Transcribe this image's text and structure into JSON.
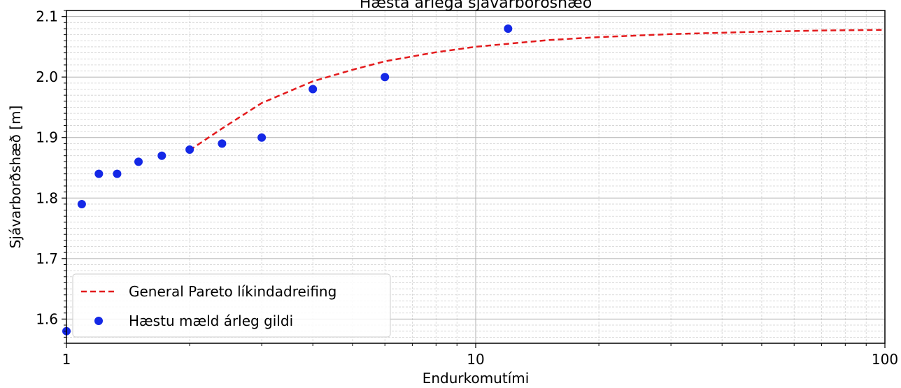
{
  "chart_data": {
    "type": "scatter",
    "title": "Hæsta árlega sjávarborðshæð",
    "xlabel": "Endurkomutími",
    "ylabel": "Sjávarborðshæð [m]",
    "xscale": "log",
    "xlim": [
      1,
      100
    ],
    "ylim": [
      1.56,
      2.11
    ],
    "x_ticks": [
      1,
      10,
      100
    ],
    "x_tick_labels": [
      "1",
      "10",
      "100"
    ],
    "y_ticks": [
      1.6,
      1.7,
      1.8,
      1.9,
      2.0,
      2.1
    ],
    "y_tick_labels": [
      "1.6",
      "1.7",
      "1.8",
      "1.9",
      "2.0",
      "2.1"
    ],
    "grid": true,
    "legend_position": "lower-left",
    "series": [
      {
        "name": "General Pareto líkindadreifing",
        "kind": "line",
        "style": "dashed",
        "color": "#e31a1c",
        "x": [
          2.0,
          2.4,
          3.0,
          4.0,
          5.0,
          6.0,
          8.0,
          10.0,
          15.0,
          20.0,
          30.0,
          50.0,
          70.0,
          100.0
        ],
        "y": [
          1.879,
          1.915,
          1.957,
          1.993,
          2.012,
          2.026,
          2.041,
          2.05,
          2.061,
          2.066,
          2.071,
          2.075,
          2.077,
          2.078
        ]
      },
      {
        "name": "Hæstu mæld árleg gildi",
        "kind": "scatter",
        "color": "#1428e6",
        "x": [
          1.0,
          1.09,
          1.2,
          1.33,
          1.5,
          1.71,
          2.0,
          2.4,
          3.0,
          4.0,
          6.0,
          12.0
        ],
        "y": [
          1.58,
          1.79,
          1.84,
          1.84,
          1.86,
          1.87,
          1.88,
          1.89,
          1.9,
          1.98,
          2.0,
          2.08
        ]
      }
    ]
  }
}
